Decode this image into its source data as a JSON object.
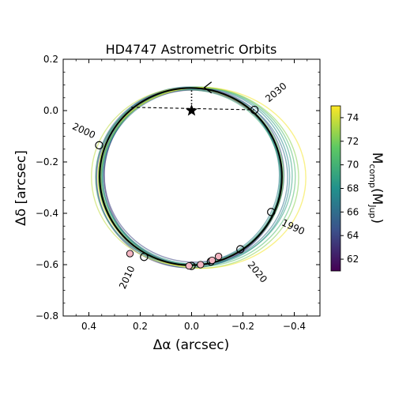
{
  "chart_data": {
    "type": "scatter",
    "title": "HD4747 Astrometric Orbits",
    "xlabel": "Δα (arcsec)",
    "ylabel": "Δδ [arcsec]",
    "xlim": [
      0.5,
      -0.5
    ],
    "ylim": [
      -0.8,
      0.2
    ],
    "x_ticks": [
      0.4,
      0.2,
      0.0,
      -0.2,
      -0.4
    ],
    "x_tick_labels": [
      "0.4",
      "0.2",
      "0.0",
      "−0.2",
      "−0.4"
    ],
    "y_ticks": [
      0.2,
      0.0,
      -0.2,
      -0.4,
      -0.6,
      -0.8
    ],
    "y_tick_labels": [
      "0.2",
      "0.0",
      "−0.2",
      "−0.4",
      "−0.6",
      "−0.8"
    ],
    "colorbar": {
      "label_base": "M",
      "label_sub": "comp",
      "label_unit_base": "M",
      "label_unit_sub": "Jup",
      "colormap": "viridis",
      "range": [
        61,
        75
      ],
      "ticks": [
        62,
        64,
        66,
        68,
        70,
        72,
        74
      ],
      "tick_labels": [
        "62",
        "64",
        "66",
        "68",
        "70",
        "72",
        "74"
      ]
    },
    "host_star": {
      "x": 0.0,
      "y": 0.0,
      "marker": "star"
    },
    "best_orbit": {
      "center_x": 0.003,
      "center_y": -0.257,
      "radius_x": 0.355,
      "radius_y": 0.345,
      "color": "#000000"
    },
    "orbit_samples": [
      {
        "cx": 0.0,
        "cy": -0.262,
        "rx": 0.352,
        "ry": 0.342,
        "mass": 61.5
      },
      {
        "cx": -0.004,
        "cy": -0.255,
        "rx": 0.345,
        "ry": 0.345,
        "mass": 62.5
      },
      {
        "cx": 0.008,
        "cy": -0.262,
        "rx": 0.362,
        "ry": 0.35,
        "mass": 63.2
      },
      {
        "cx": -0.01,
        "cy": -0.25,
        "rx": 0.35,
        "ry": 0.34,
        "mass": 64.0
      },
      {
        "cx": 0.012,
        "cy": -0.256,
        "rx": 0.36,
        "ry": 0.346,
        "mass": 64.8
      },
      {
        "cx": 0.004,
        "cy": -0.262,
        "rx": 0.35,
        "ry": 0.35,
        "mass": 65.5
      },
      {
        "cx": -0.014,
        "cy": -0.26,
        "rx": 0.36,
        "ry": 0.342,
        "mass": 66.2
      },
      {
        "cx": 0.01,
        "cy": -0.252,
        "rx": 0.352,
        "ry": 0.344,
        "mass": 66.9
      },
      {
        "cx": -0.018,
        "cy": -0.258,
        "rx": 0.364,
        "ry": 0.348,
        "mass": 67.6
      },
      {
        "cx": 0.006,
        "cy": -0.258,
        "rx": 0.356,
        "ry": 0.343,
        "mass": 68.3
      },
      {
        "cx": -0.022,
        "cy": -0.254,
        "rx": 0.37,
        "ry": 0.345,
        "mass": 69.0
      },
      {
        "cx": 0.014,
        "cy": -0.26,
        "rx": 0.36,
        "ry": 0.341,
        "mass": 69.8
      },
      {
        "cx": -0.026,
        "cy": -0.258,
        "rx": 0.378,
        "ry": 0.35,
        "mass": 70.6
      },
      {
        "cx": 0.002,
        "cy": -0.256,
        "rx": 0.36,
        "ry": 0.344,
        "mass": 71.4
      },
      {
        "cx": -0.032,
        "cy": -0.262,
        "rx": 0.385,
        "ry": 0.352,
        "mass": 72.4
      },
      {
        "cx": 0.018,
        "cy": -0.258,
        "rx": 0.372,
        "ry": 0.346,
        "mass": 73.6
      },
      {
        "cx": -0.04,
        "cy": -0.262,
        "rx": 0.405,
        "ry": 0.352,
        "mass": 74.8
      }
    ],
    "predicted_positions": [
      {
        "x": 0.36,
        "y": -0.135,
        "marker": "open-circle"
      },
      {
        "x": -0.31,
        "y": -0.395,
        "marker": "open-circle"
      },
      {
        "x": -0.19,
        "y": -0.54,
        "marker": "open-circle"
      },
      {
        "x": 0.185,
        "y": -0.57,
        "marker": "open-circle"
      },
      {
        "x": -0.245,
        "y": 0.003,
        "marker": "open-circle"
      },
      {
        "x": 0.0,
        "y": -0.605,
        "marker": "open-circle"
      },
      {
        "x": -0.075,
        "y": -0.588,
        "marker": "open-circle"
      }
    ],
    "observed_positions": [
      {
        "x": 0.24,
        "y": -0.557
      },
      {
        "x": 0.01,
        "y": -0.605
      },
      {
        "x": -0.035,
        "y": -0.6
      },
      {
        "x": -0.08,
        "y": -0.583
      },
      {
        "x": -0.105,
        "y": -0.568
      }
    ],
    "line_of_nodes": {
      "x1": 0.235,
      "y1": 0.013,
      "x2": -0.245,
      "y2": 0.003,
      "style": "dashed"
    },
    "periastron_line": {
      "x1": 0.0,
      "y1": 0.0,
      "x2": 0.0,
      "y2": 0.09,
      "style": "dotted"
    },
    "direction_arrow": {
      "x": -0.05,
      "y": 0.09
    },
    "epoch_labels": [
      {
        "text": "2030",
        "x": -0.33,
        "y": 0.07,
        "rotation": -40
      },
      {
        "text": "2000",
        "x": 0.42,
        "y": -0.08,
        "rotation": 25
      },
      {
        "text": "1990",
        "x": -0.395,
        "y": -0.455,
        "rotation": 25
      },
      {
        "text": "2020",
        "x": -0.255,
        "y": -0.63,
        "rotation": 50
      },
      {
        "text": "2010",
        "x": 0.25,
        "y": -0.65,
        "rotation": -65
      }
    ]
  }
}
